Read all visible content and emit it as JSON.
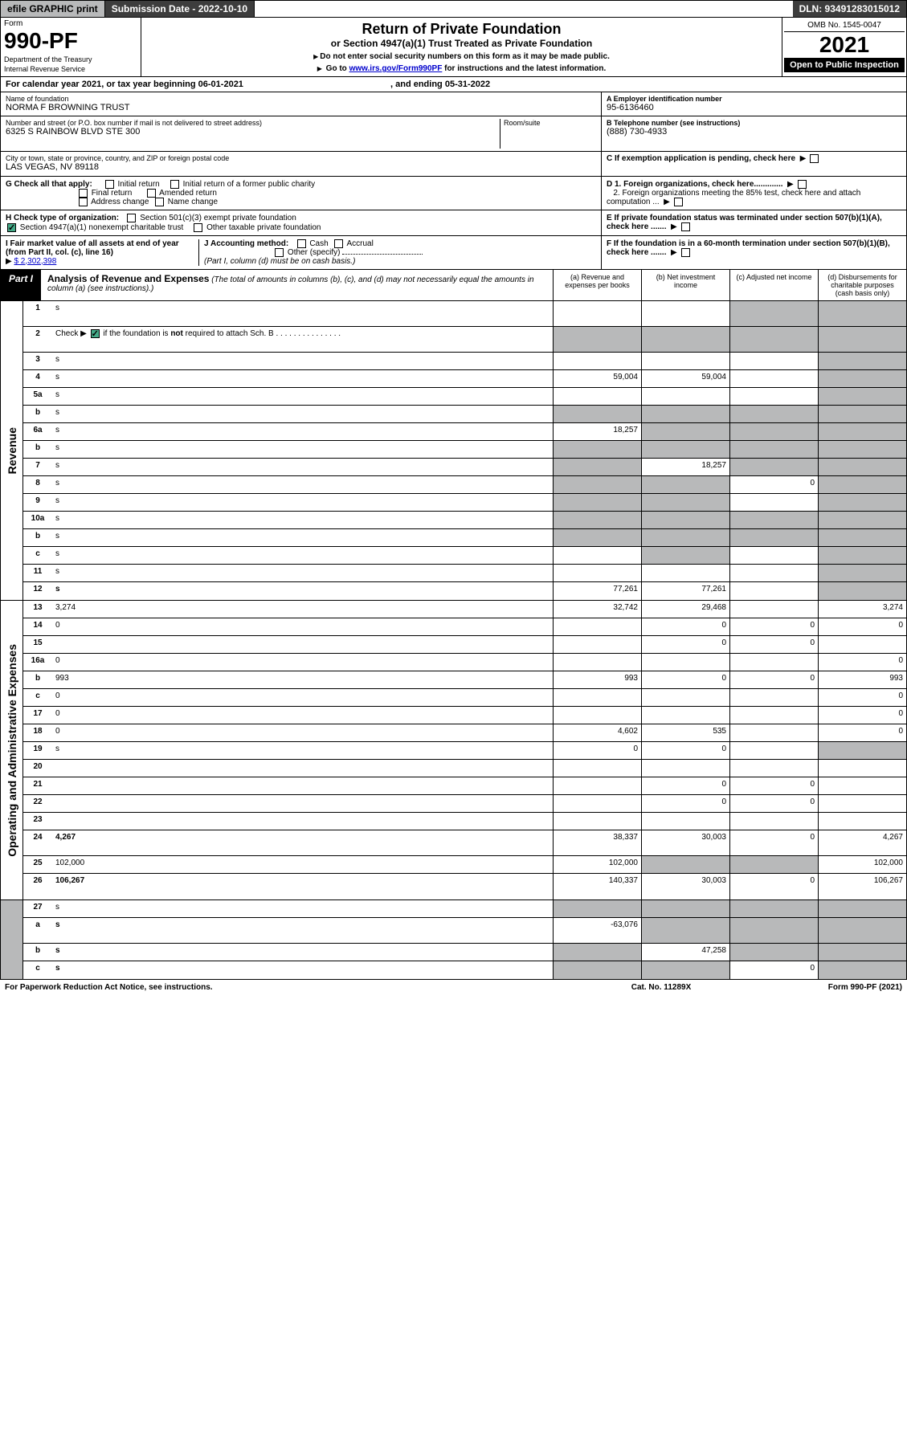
{
  "topbar": {
    "efile": "efile GRAPHIC print",
    "submission": "Submission Date - 2022-10-10",
    "dln": "DLN: 93491283015012"
  },
  "header": {
    "form_label": "Form",
    "form_number": "990-PF",
    "dept1": "Department of the Treasury",
    "dept2": "Internal Revenue Service",
    "title": "Return of Private Foundation",
    "subtitle": "or Section 4947(a)(1) Trust Treated as Private Foundation",
    "instr1": "Do not enter social security numbers on this form as it may be made public.",
    "instr2_pre": "Go to ",
    "instr2_link": "www.irs.gov/Form990PF",
    "instr2_post": " for instructions and the latest information.",
    "omb": "OMB No. 1545-0047",
    "year": "2021",
    "open": "Open to Public Inspection"
  },
  "cal_year": {
    "pre": "For calendar year 2021, or tax year beginning ",
    "begin": "06-01-2021",
    "mid": " , and ending ",
    "end": "05-31-2022"
  },
  "info": {
    "name_label": "Name of foundation",
    "name": "NORMA F BROWNING TRUST",
    "addr_label": "Number and street (or P.O. box number if mail is not delivered to street address)",
    "addr": "6325 S RAINBOW BLVD STE 300",
    "room_label": "Room/suite",
    "city_label": "City or town, state or province, country, and ZIP or foreign postal code",
    "city": "LAS VEGAS, NV  89118",
    "ein_label": "A Employer identification number",
    "ein": "95-6136460",
    "phone_label": "B Telephone number (see instructions)",
    "phone": "(888) 730-4933",
    "c_label": "C If exemption application is pending, check here"
  },
  "checks": {
    "g_label": "G Check all that apply:",
    "g1": "Initial return",
    "g2": "Initial return of a former public charity",
    "g3": "Final return",
    "g4": "Amended return",
    "g5": "Address change",
    "g6": "Name change",
    "d1": "D 1. Foreign organizations, check here.............",
    "d2": "2. Foreign organizations meeting the 85% test, check here and attach computation ...",
    "h_label": "H Check type of organization:",
    "h1": "Section 501(c)(3) exempt private foundation",
    "h2": "Section 4947(a)(1) nonexempt charitable trust",
    "h3": "Other taxable private foundation",
    "e_label": "E If private foundation status was terminated under section 507(b)(1)(A), check here .......",
    "i_label": "I Fair market value of all assets at end of year (from Part II, col. (c), line 16)",
    "i_val": "$  2,302,398",
    "j_label": "J Accounting method:",
    "j1": "Cash",
    "j2": "Accrual",
    "j3": "Other (specify)",
    "j_note": "(Part I, column (d) must be on cash basis.)",
    "f_label": "F If the foundation is in a 60-month termination under section 507(b)(1)(B), check here ......."
  },
  "part1": {
    "label": "Part I",
    "title": "Analysis of Revenue and Expenses",
    "note": " (The total of amounts in columns (b), (c), and (d) may not necessarily equal the amounts in column (a) (see instructions).)",
    "col_a": "(a) Revenue and expenses per books",
    "col_b": "(b) Net investment income",
    "col_c": "(c) Adjusted net income",
    "col_d": "(d) Disbursements for charitable purposes (cash basis only)"
  },
  "side_labels": {
    "revenue": "Revenue",
    "expenses": "Operating and Administrative Expenses"
  },
  "rows": [
    {
      "n": "1",
      "d": "s",
      "a": "",
      "b": "",
      "c": "s",
      "tall": true
    },
    {
      "n": "2",
      "d": "s",
      "a": "s",
      "b": "s",
      "c": "s",
      "tall": true,
      "bold_not": true
    },
    {
      "n": "3",
      "d": "s",
      "a": "",
      "b": "",
      "c": ""
    },
    {
      "n": "4",
      "d": "s",
      "a": "59,004",
      "b": "59,004",
      "c": ""
    },
    {
      "n": "5a",
      "d": "s",
      "a": "",
      "b": "",
      "c": ""
    },
    {
      "n": "b",
      "d": "s",
      "a": "s",
      "b": "s",
      "c": "s"
    },
    {
      "n": "6a",
      "d": "s",
      "a": "18,257",
      "b": "s",
      "c": "s"
    },
    {
      "n": "b",
      "d": "s",
      "a": "s",
      "b": "s",
      "c": "s"
    },
    {
      "n": "7",
      "d": "s",
      "a": "s",
      "b": "18,257",
      "c": "s"
    },
    {
      "n": "8",
      "d": "s",
      "a": "s",
      "b": "s",
      "c": "0"
    },
    {
      "n": "9",
      "d": "s",
      "a": "s",
      "b": "s",
      "c": ""
    },
    {
      "n": "10a",
      "d": "s",
      "a": "s",
      "b": "s",
      "c": "s"
    },
    {
      "n": "b",
      "d": "s",
      "a": "s",
      "b": "s",
      "c": "s"
    },
    {
      "n": "c",
      "d": "s",
      "a": "",
      "b": "s",
      "c": ""
    },
    {
      "n": "11",
      "d": "s",
      "a": "",
      "b": "",
      "c": ""
    },
    {
      "n": "12",
      "d": "s",
      "a": "77,261",
      "b": "77,261",
      "c": "",
      "bold": true
    }
  ],
  "exp_rows": [
    {
      "n": "13",
      "d": "3,274",
      "a": "32,742",
      "b": "29,468",
      "c": ""
    },
    {
      "n": "14",
      "d": "0",
      "a": "",
      "b": "0",
      "c": "0"
    },
    {
      "n": "15",
      "d": "",
      "a": "",
      "b": "0",
      "c": "0"
    },
    {
      "n": "16a",
      "d": "0",
      "a": "",
      "b": "",
      "c": ""
    },
    {
      "n": "b",
      "d": "993",
      "a": "993",
      "b": "0",
      "c": "0"
    },
    {
      "n": "c",
      "d": "0",
      "a": "",
      "b": "",
      "c": ""
    },
    {
      "n": "17",
      "d": "0",
      "a": "",
      "b": "",
      "c": ""
    },
    {
      "n": "18",
      "d": "0",
      "a": "4,602",
      "b": "535",
      "c": ""
    },
    {
      "n": "19",
      "d": "s",
      "a": "0",
      "b": "0",
      "c": ""
    },
    {
      "n": "20",
      "d": "",
      "a": "",
      "b": "",
      "c": ""
    },
    {
      "n": "21",
      "d": "",
      "a": "",
      "b": "0",
      "c": "0"
    },
    {
      "n": "22",
      "d": "",
      "a": "",
      "b": "0",
      "c": "0"
    },
    {
      "n": "23",
      "d": "",
      "a": "",
      "b": "",
      "c": ""
    },
    {
      "n": "24",
      "d": "4,267",
      "a": "38,337",
      "b": "30,003",
      "c": "0",
      "bold": true,
      "tall": true
    },
    {
      "n": "25",
      "d": "102,000",
      "a": "102,000",
      "b": "s",
      "c": "s"
    },
    {
      "n": "26",
      "d": "106,267",
      "a": "140,337",
      "b": "30,003",
      "c": "0",
      "bold": true,
      "tall": true
    }
  ],
  "bottom_rows": [
    {
      "n": "27",
      "d": "s",
      "a": "s",
      "b": "s",
      "c": "s"
    },
    {
      "n": "a",
      "d": "s",
      "a": "-63,076",
      "b": "s",
      "c": "s",
      "bold": true,
      "tall": true
    },
    {
      "n": "b",
      "d": "s",
      "a": "s",
      "b": "47,258",
      "c": "s",
      "bold": true
    },
    {
      "n": "c",
      "d": "s",
      "a": "s",
      "b": "s",
      "c": "0",
      "bold": true
    }
  ],
  "footer": {
    "left": "For Paperwork Reduction Act Notice, see instructions.",
    "mid": "Cat. No. 11289X",
    "right": "Form 990-PF (2021)"
  }
}
